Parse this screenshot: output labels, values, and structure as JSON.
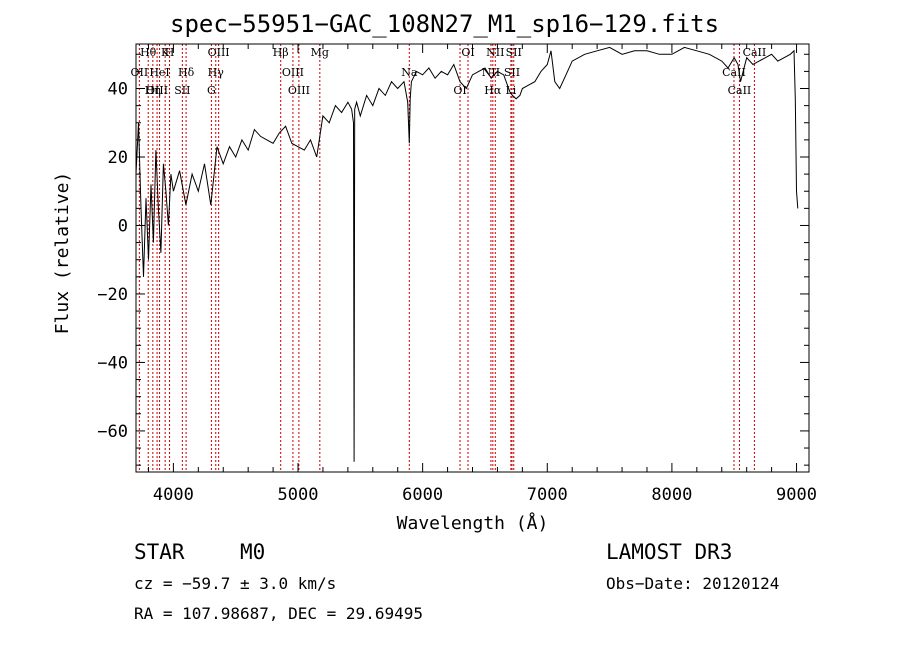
{
  "header": {
    "title": "spec−55951−GAC_108N27_M1_sp16−129.fits"
  },
  "info": {
    "class_label": "STAR",
    "subclass": "M0",
    "survey": "LAMOST DR3",
    "cz": "cz = −59.7 ± 3.0 km/s",
    "obs_date": "Obs−Date: 20120124",
    "radec": "RA = 107.98687, DEC =  29.69495"
  },
  "chart_data": {
    "type": "line",
    "title": "spec−55951−GAC_108N27_M1_sp16−129.fits",
    "xlabel": "Wavelength (Å)",
    "ylabel": "Flux (relative)",
    "xlim": [
      3700,
      9100
    ],
    "ylim": [
      -72,
      53
    ],
    "x_ticks": [
      4000,
      5000,
      6000,
      7000,
      8000,
      9000
    ],
    "y_ticks": [
      -60,
      -40,
      -20,
      0,
      20,
      40
    ],
    "series": [
      {
        "name": "flux",
        "x": [
          3700,
          3720,
          3740,
          3760,
          3780,
          3800,
          3820,
          3840,
          3860,
          3880,
          3900,
          3920,
          3940,
          3960,
          3980,
          4000,
          4050,
          4100,
          4150,
          4200,
          4250,
          4300,
          4350,
          4400,
          4450,
          4500,
          4550,
          4600,
          4650,
          4700,
          4750,
          4800,
          4850,
          4900,
          4950,
          5000,
          5050,
          5100,
          5150,
          5200,
          5250,
          5300,
          5350,
          5400,
          5430,
          5445,
          5450,
          5455,
          5470,
          5500,
          5550,
          5600,
          5650,
          5700,
          5750,
          5800,
          5850,
          5880,
          5893,
          5900,
          5910,
          5950,
          6000,
          6050,
          6100,
          6150,
          6200,
          6250,
          6300,
          6350,
          6400,
          6450,
          6500,
          6550,
          6600,
          6650,
          6700,
          6720,
          6750,
          6780,
          6800,
          6850,
          6900,
          6950,
          7000,
          7030,
          7060,
          7100,
          7150,
          7200,
          7300,
          7400,
          7500,
          7600,
          7700,
          7800,
          7900,
          8000,
          8100,
          8200,
          8300,
          8400,
          8450,
          8500,
          8530,
          8550,
          8600,
          8650,
          8700,
          8750,
          8800,
          8850,
          8900,
          8950,
          8980,
          8990,
          9000,
          9010
        ],
        "y": [
          15,
          30,
          5,
          -15,
          8,
          -10,
          12,
          -5,
          22,
          5,
          -8,
          18,
          10,
          0,
          15,
          10,
          16,
          6,
          15,
          10,
          18,
          6,
          23,
          18,
          23,
          20,
          25,
          22,
          28,
          26,
          25,
          24,
          27,
          29,
          24,
          23,
          22,
          25,
          20,
          32,
          30,
          35,
          33,
          36,
          34,
          30,
          -69,
          34,
          36,
          32,
          38,
          35,
          40,
          38,
          42,
          40,
          42,
          36,
          24,
          37,
          42,
          45,
          44,
          46,
          43,
          45,
          44,
          47,
          42,
          40,
          44,
          45,
          46,
          43,
          45,
          44,
          39,
          38,
          37,
          38,
          40,
          41,
          42,
          45,
          47,
          51,
          42,
          40,
          44,
          48,
          50,
          51,
          52,
          50,
          51,
          51,
          50,
          50,
          52,
          51,
          50,
          48,
          46,
          49,
          47,
          42,
          49,
          47,
          48,
          49,
          50,
          48,
          49,
          50,
          51,
          37,
          10,
          5
        ]
      }
    ],
    "line_markers": [
      {
        "label": "Hθ",
        "wavelength": 3798
      },
      {
        "label": "OII",
        "wavelength": 3727
      },
      {
        "label": "OIII",
        "wavelength": 3869
      },
      {
        "label": "K",
        "wavelength": 3934
      },
      {
        "label": "HeI",
        "wavelength": 3889
      },
      {
        "label": "Hη",
        "wavelength": 3835
      },
      {
        "label": "H",
        "wavelength": 3969
      },
      {
        "label": "Hδ",
        "wavelength": 4102
      },
      {
        "label": "SII",
        "wavelength": 4072
      },
      {
        "label": "OIII",
        "wavelength": 4363
      },
      {
        "label": "Hγ",
        "wavelength": 4340
      },
      {
        "label": "G",
        "wavelength": 4305
      },
      {
        "label": "Hβ",
        "wavelength": 4861
      },
      {
        "label": "OIII",
        "wavelength": 4959
      },
      {
        "label": "OIII",
        "wavelength": 5007
      },
      {
        "label": "Mg",
        "wavelength": 5175
      },
      {
        "label": "Na",
        "wavelength": 5893
      },
      {
        "label": "OI",
        "wavelength": 6300
      },
      {
        "label": "OI",
        "wavelength": 6364
      },
      {
        "label": "NII",
        "wavelength": 6548
      },
      {
        "label": "Hα",
        "wavelength": 6563
      },
      {
        "label": "NII",
        "wavelength": 6583
      },
      {
        "label": "SII",
        "wavelength": 6717
      },
      {
        "label": "Li",
        "wavelength": 6708
      },
      {
        "label": "SII",
        "wavelength": 6731
      },
      {
        "label": "CaII",
        "wavelength": 8498
      },
      {
        "label": "CaII",
        "wavelength": 8542
      },
      {
        "label": "CaII",
        "wavelength": 8662
      }
    ]
  }
}
